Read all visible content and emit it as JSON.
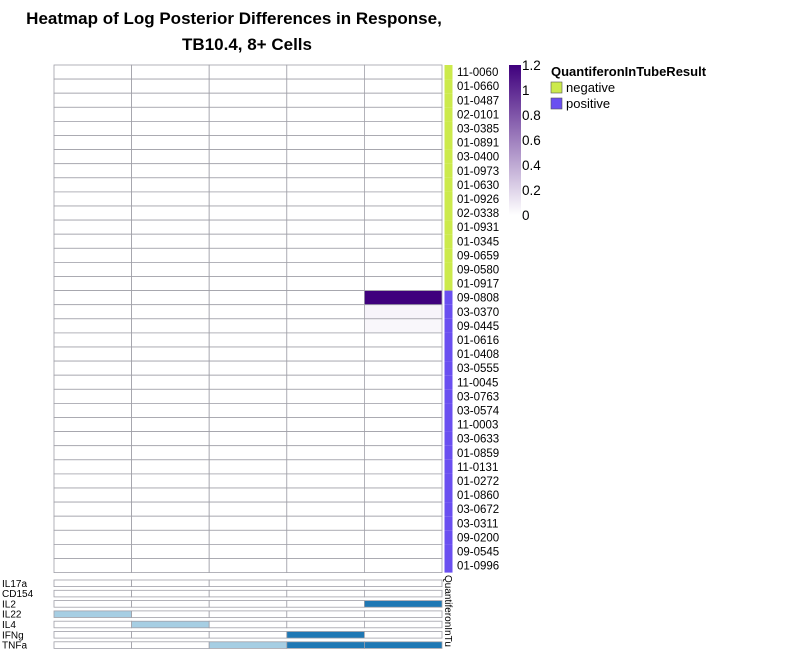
{
  "chart_data": {
    "type": "heatmap",
    "title_lines": [
      "Heatmap of Log Posterior Differences in Response,",
      "TB10.4, 8+ Cells"
    ],
    "columns": 5,
    "rows": [
      "11-0060",
      "01-0660",
      "01-0487",
      "02-0101",
      "03-0385",
      "01-0891",
      "03-0400",
      "01-0973",
      "01-0630",
      "01-0926",
      "02-0338",
      "01-0931",
      "01-0345",
      "09-0659",
      "09-0580",
      "01-0917",
      "09-0808",
      "03-0370",
      "09-0445",
      "01-0616",
      "01-0408",
      "03-0555",
      "11-0045",
      "03-0763",
      "03-0574",
      "11-0003",
      "03-0633",
      "01-0859",
      "11-0131",
      "01-0272",
      "01-0860",
      "03-0672",
      "03-0311",
      "09-0200",
      "09-0545",
      "01-0996"
    ],
    "groups": [
      "negative",
      "negative",
      "negative",
      "negative",
      "negative",
      "negative",
      "negative",
      "negative",
      "negative",
      "negative",
      "negative",
      "negative",
      "negative",
      "negative",
      "negative",
      "negative",
      "positive",
      "positive",
      "positive",
      "positive",
      "positive",
      "positive",
      "positive",
      "positive",
      "positive",
      "positive",
      "positive",
      "positive",
      "positive",
      "positive",
      "positive",
      "positive",
      "positive",
      "positive",
      "positive",
      "positive"
    ],
    "values": [
      [
        0,
        0,
        0,
        0,
        0
      ],
      [
        0,
        0,
        0,
        0,
        0
      ],
      [
        0,
        0,
        0,
        0,
        0
      ],
      [
        0,
        0,
        0,
        0,
        0
      ],
      [
        0,
        0,
        0,
        0,
        0
      ],
      [
        0,
        0,
        0,
        0,
        0
      ],
      [
        0,
        0,
        0,
        0,
        0
      ],
      [
        0,
        0,
        0,
        0,
        0
      ],
      [
        0,
        0,
        0,
        0,
        0
      ],
      [
        0,
        0,
        0,
        0,
        0
      ],
      [
        0,
        0,
        0,
        0,
        0
      ],
      [
        0,
        0,
        0,
        0,
        0
      ],
      [
        0,
        0,
        0,
        0,
        0
      ],
      [
        0,
        0,
        0,
        0,
        0
      ],
      [
        0,
        0,
        0,
        0,
        0
      ],
      [
        0,
        0,
        0,
        0,
        0
      ],
      [
        0,
        0,
        0,
        0,
        1.2
      ],
      [
        0,
        0,
        0,
        0,
        0.05
      ],
      [
        0,
        0,
        0,
        0,
        0.04
      ],
      [
        0,
        0,
        0,
        0,
        0
      ],
      [
        0,
        0,
        0,
        0,
        0
      ],
      [
        0,
        0,
        0,
        0,
        0
      ],
      [
        0,
        0,
        0,
        0,
        0
      ],
      [
        0,
        0,
        0,
        0,
        0
      ],
      [
        0,
        0,
        0,
        0,
        0
      ],
      [
        0,
        0,
        0,
        0,
        0
      ],
      [
        0,
        0,
        0,
        0,
        0
      ],
      [
        0,
        0,
        0,
        0,
        0
      ],
      [
        0,
        0,
        0,
        0,
        0
      ],
      [
        0,
        0,
        0,
        0,
        0
      ],
      [
        0,
        0,
        0,
        0,
        0
      ],
      [
        0,
        0,
        0,
        0,
        0
      ],
      [
        0,
        0,
        0,
        0,
        0
      ],
      [
        0,
        0,
        0,
        0,
        0
      ],
      [
        0,
        0,
        0,
        0,
        0
      ],
      [
        0,
        0,
        0,
        0,
        0
      ]
    ],
    "color_scale": {
      "min": 0,
      "max": 1.2,
      "low": "#ffffff",
      "high": "#3f007d",
      "ticks": [
        "1.2",
        "1",
        "0.8",
        "0.6",
        "0.4",
        "0.2",
        "0"
      ]
    },
    "annotation": {
      "name": "QuantiferonInTubeResult",
      "axis_label": "QuantiferonInTu",
      "levels": [
        {
          "label": "negative",
          "color": "#ccea4c"
        },
        {
          "label": "positive",
          "color": "#6a4ff0"
        }
      ]
    },
    "cytokines": {
      "labels": [
        "IL17a",
        "CD154",
        "IL2",
        "IL22",
        "IL4",
        "IFNg",
        "TNFa"
      ],
      "matrix": [
        [
          0,
          0,
          0,
          0,
          0
        ],
        [
          0,
          0,
          0,
          0,
          0
        ],
        [
          0,
          0,
          0,
          0,
          2
        ],
        [
          1,
          0,
          0,
          0,
          0
        ],
        [
          0,
          1,
          0,
          0,
          0
        ],
        [
          0,
          0,
          0,
          2,
          0
        ],
        [
          0,
          0,
          1,
          2,
          2
        ]
      ],
      "colors": {
        "0": "#ffffff",
        "1": "#a6cee3",
        "2": "#1f78b4"
      }
    },
    "grid_color": "#a0a0a8"
  }
}
